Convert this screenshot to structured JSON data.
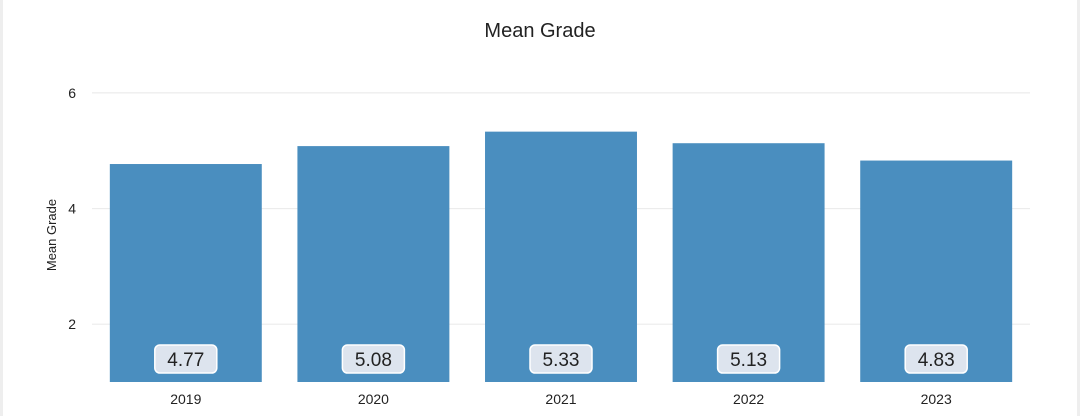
{
  "chart_data": {
    "type": "bar",
    "title": "Mean Grade",
    "xlabel": "",
    "ylabel": "Mean Grade",
    "categories": [
      "2019",
      "2020",
      "2021",
      "2022",
      "2023"
    ],
    "values": [
      4.77,
      5.08,
      5.33,
      5.13,
      4.83
    ],
    "data_labels": [
      "4.77",
      "5.08",
      "5.33",
      "5.13",
      "4.83"
    ],
    "yticks": [
      2,
      4,
      6
    ],
    "ylim": [
      1,
      6.5
    ],
    "grid": true,
    "legend": "none",
    "colors": {
      "bar": "#4a8ebf",
      "label_box": "#dde4ee",
      "label_box_border": "#ffffff",
      "grid": "#ececec"
    }
  }
}
